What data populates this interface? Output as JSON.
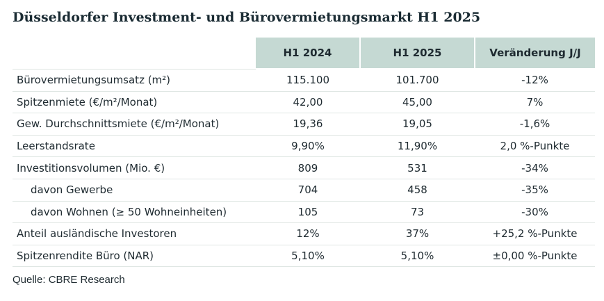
{
  "title": "Düsseldorfer Investment- und Bürovermietungsmarkt H1 2025",
  "table": {
    "headers": [
      "",
      "H1 2024",
      "H1 2025",
      "Veränderung J/J"
    ],
    "rows": [
      {
        "label": "Bürovermietungsumsatz (m²)",
        "h1_2024": "115.100",
        "h1_2025": "101.700",
        "change": "-12%"
      },
      {
        "label": "Spitzenmiete (€/m²/Monat)",
        "h1_2024": "42,00",
        "h1_2025": "45,00",
        "change": "7%"
      },
      {
        "label": "Gew. Durchschnittsmiete (€/m²/Monat)",
        "h1_2024": "19,36",
        "h1_2025": "19,05",
        "change": "-1,6%"
      },
      {
        "label": "Leerstandsrate",
        "h1_2024": "9,90%",
        "h1_2025": "11,90%",
        "change": "2,0 %-Punkte"
      },
      {
        "label": "Investitionsvolumen (Mio. €)",
        "h1_2024": "809",
        "h1_2025": "531",
        "change": "-34%"
      },
      {
        "label": "davon Gewerbe",
        "h1_2024": "704",
        "h1_2025": "458",
        "change": "-35%"
      },
      {
        "label": "davon Wohnen (≥ 50 Wohneinheiten)",
        "h1_2024": "105",
        "h1_2025": "73",
        "change": "-30%"
      },
      {
        "label": "Anteil ausländische Investoren",
        "h1_2024": "12%",
        "h1_2025": "37%",
        "change": "+25,2 %-Punkte"
      },
      {
        "label": "Spitzenrendite Büro (NAR)",
        "h1_2024": "5,10%",
        "h1_2025": "5,10%",
        "change": "±0,00 %-Punkte"
      }
    ]
  },
  "source": "Quelle: CBRE Research"
}
